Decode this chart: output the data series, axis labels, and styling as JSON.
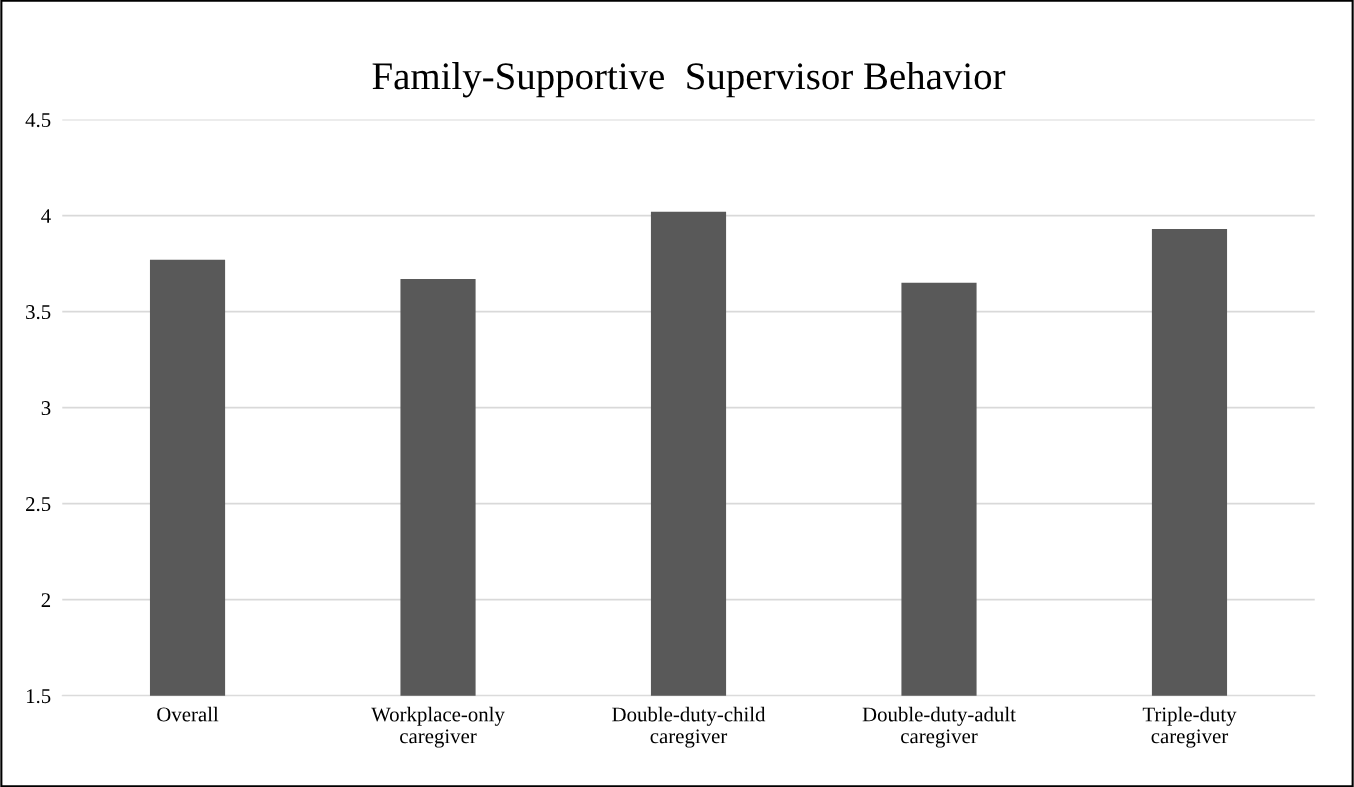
{
  "chart_data": {
    "type": "bar",
    "title": "Family-Supportive  Supervisor Behavior",
    "categories": [
      "Overall",
      "Workplace-only\ncaregiver",
      "Double-duty-child\ncaregiver",
      "Double-duty-adult\ncaregiver",
      "Triple-duty\ncaregiver"
    ],
    "values": [
      3.77,
      3.67,
      4.02,
      3.65,
      3.93
    ],
    "color": "#595959",
    "ylim": [
      1.5,
      4.5
    ],
    "yticks": [
      1.5,
      2,
      2.5,
      3,
      3.5,
      4,
      4.5
    ],
    "grid": "y",
    "legend": false
  }
}
